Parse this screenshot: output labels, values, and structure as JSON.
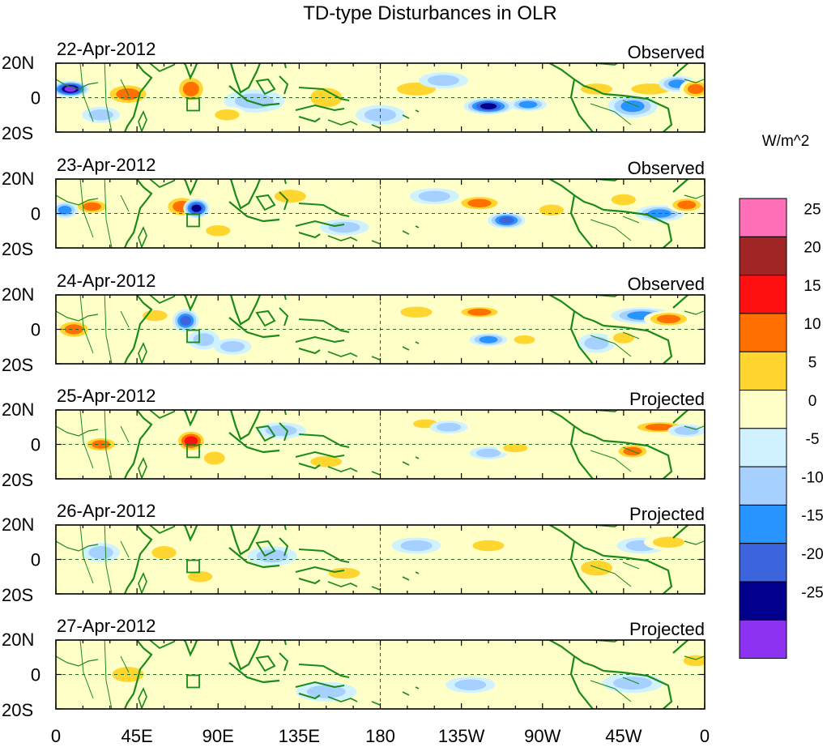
{
  "title": "TD-type Disturbances in OLR",
  "colorbar": {
    "unit": "W/m^2",
    "bins": [
      {
        "color": "#ff70b8"
      },
      {
        "color": "#a02626"
      },
      {
        "color": "#ff1010"
      },
      {
        "color": "#ff7000"
      },
      {
        "color": "#ffd630"
      },
      {
        "color": "#ffffc8"
      },
      {
        "color": "#d0f2ff"
      },
      {
        "color": "#a6d0ff"
      },
      {
        "color": "#2894ff"
      },
      {
        "color": "#3c64dc"
      },
      {
        "color": "#00008c"
      },
      {
        "color": "#8c32f0"
      }
    ],
    "ticks": [
      "25",
      "20",
      "15",
      "10",
      "5",
      "0",
      "-5",
      "-10",
      "-15",
      "-20",
      "-25"
    ]
  },
  "lat_labels": [
    "20N",
    "0",
    "20S"
  ],
  "lon_labels": [
    "0",
    "45E",
    "90E",
    "135E",
    "180",
    "135W",
    "90W",
    "45W",
    "0"
  ],
  "panels": [
    {
      "date": "22-Apr-2012",
      "status": "Observed"
    },
    {
      "date": "23-Apr-2012",
      "status": "Observed"
    },
    {
      "date": "24-Apr-2012",
      "status": "Observed"
    },
    {
      "date": "25-Apr-2012",
      "status": "Projected"
    },
    {
      "date": "26-Apr-2012",
      "status": "Projected"
    },
    {
      "date": "27-Apr-2012",
      "status": "Projected"
    }
  ]
}
